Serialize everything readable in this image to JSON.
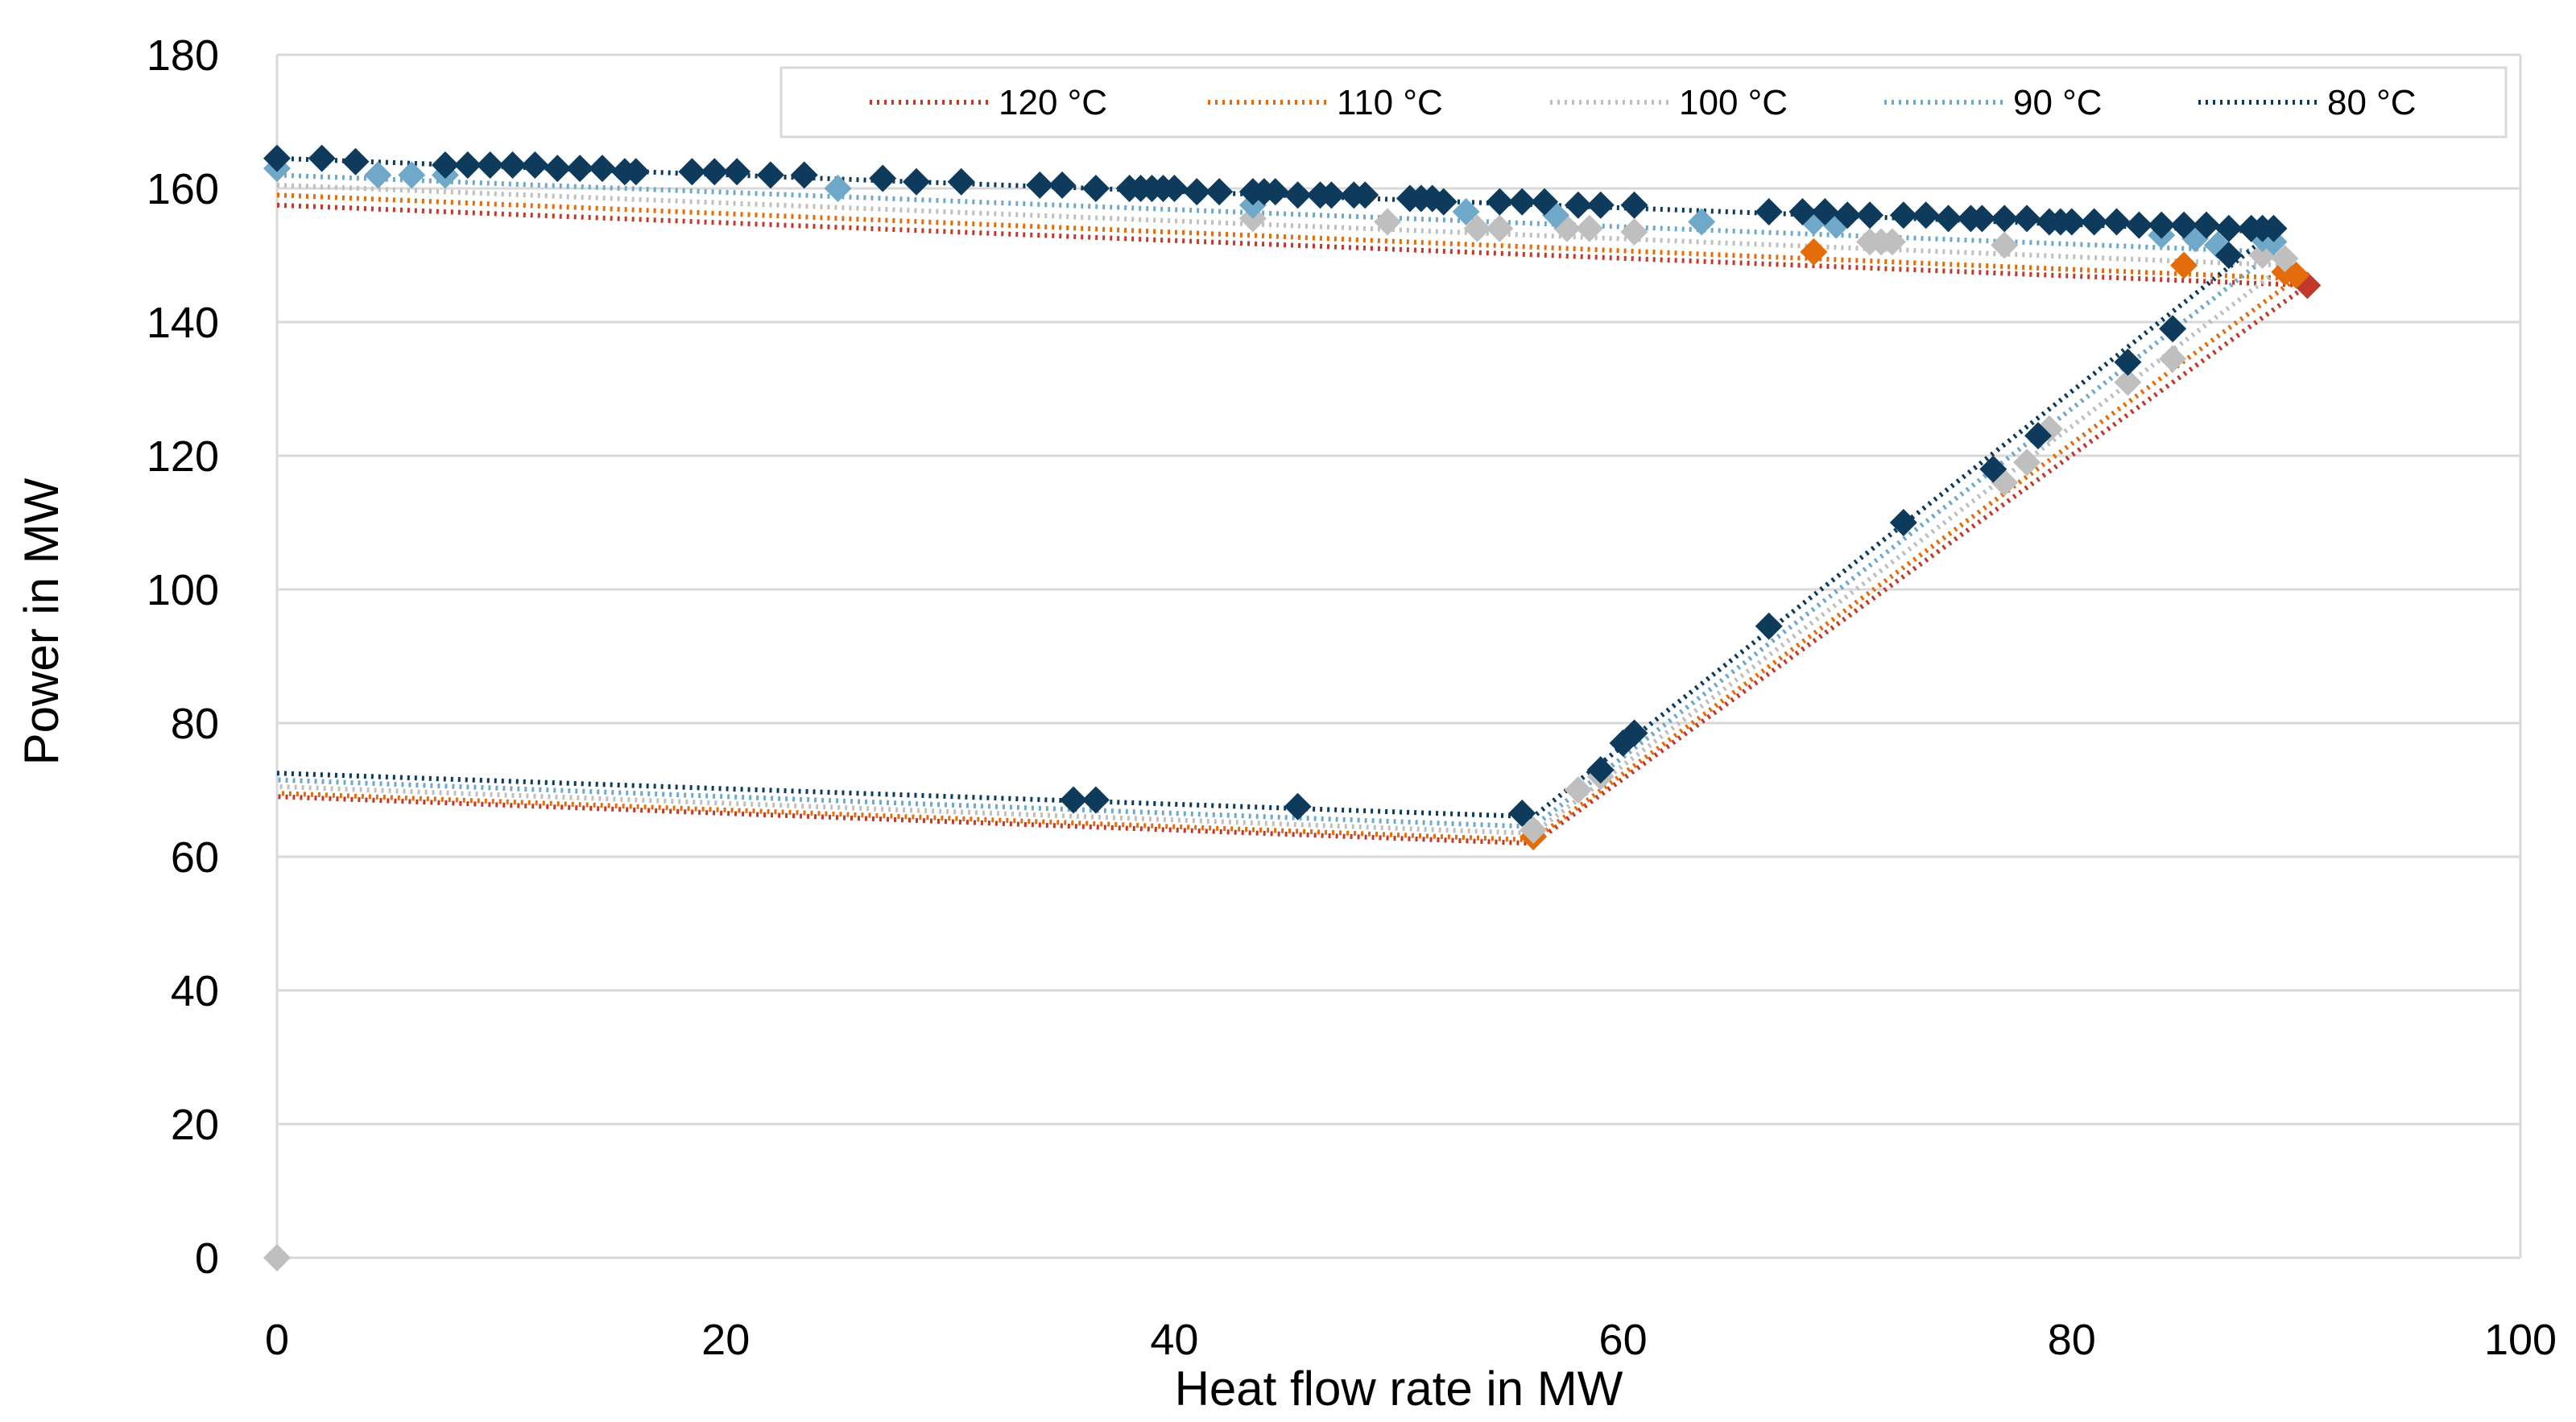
{
  "chart_data": {
    "type": "scatter",
    "title": "",
    "xlabel": "Heat flow rate in MW",
    "ylabel": "Power in MW",
    "xlim": [
      0,
      100
    ],
    "ylim": [
      0,
      180
    ],
    "x_ticks": [
      0,
      20,
      40,
      60,
      80,
      100
    ],
    "y_ticks": [
      0,
      20,
      40,
      60,
      80,
      100,
      120,
      140,
      160,
      180
    ],
    "x_tick_labels": [
      "0",
      "20",
      "40",
      "60",
      "80",
      "100"
    ],
    "y_tick_labels": [
      "0",
      "20",
      "40",
      "60",
      "80",
      "100",
      "120",
      "140",
      "160",
      "180"
    ],
    "grid": true,
    "legend_position": "top-right",
    "legend": [
      "120 °C",
      "110 °C",
      "100 °C",
      "90 °C",
      "80 °C"
    ],
    "series": [
      {
        "name": "120 °C",
        "color": "#c0392b",
        "trend": [
          [
            0,
            157.5
          ],
          [
            90.5,
            145.5
          ],
          [
            56,
            62
          ],
          [
            0,
            69
          ]
        ],
        "points": [
          [
            90.5,
            145.5
          ]
        ]
      },
      {
        "name": "110 °C",
        "color": "#e46c0a",
        "trend": [
          [
            0,
            159
          ],
          [
            90,
            146.5
          ],
          [
            56,
            62.5
          ],
          [
            0,
            69.5
          ]
        ],
        "points": [
          [
            68.5,
            150.5
          ],
          [
            85,
            148.5
          ],
          [
            89.5,
            147.5
          ],
          [
            90,
            147
          ],
          [
            56,
            63
          ]
        ]
      },
      {
        "name": "100 °C",
        "color": "#bfbfbf",
        "trend": [
          [
            0,
            160.5
          ],
          [
            89.5,
            148.5
          ],
          [
            56,
            63.5
          ],
          [
            0,
            70.5
          ]
        ],
        "points": [
          [
            0,
            0
          ],
          [
            43.5,
            155.5
          ],
          [
            49.5,
            155
          ],
          [
            53.5,
            154
          ],
          [
            54.5,
            154
          ],
          [
            57.5,
            154
          ],
          [
            58.5,
            154
          ],
          [
            60.5,
            153.5
          ],
          [
            71,
            152
          ],
          [
            71.5,
            152
          ],
          [
            72,
            152
          ],
          [
            77,
            151.5
          ],
          [
            88.5,
            150
          ],
          [
            89.5,
            149.5
          ],
          [
            84.5,
            134.5
          ],
          [
            82.5,
            131
          ],
          [
            79,
            124
          ],
          [
            78,
            119
          ],
          [
            77,
            116
          ],
          [
            58,
            70
          ],
          [
            59,
            72
          ],
          [
            56,
            64
          ]
        ]
      },
      {
        "name": "90 °C",
        "color": "#6fa8c8",
        "trend": [
          [
            0,
            162
          ],
          [
            89,
            150.5
          ],
          [
            56,
            64.5
          ],
          [
            0,
            71.5
          ]
        ],
        "points": [
          [
            0,
            163
          ],
          [
            4.5,
            162
          ],
          [
            6,
            162
          ],
          [
            7.5,
            162
          ],
          [
            25,
            160
          ],
          [
            43.5,
            157.5
          ],
          [
            53,
            156.5
          ],
          [
            57,
            156
          ],
          [
            63.5,
            155
          ],
          [
            68.5,
            155
          ],
          [
            69.5,
            154.5
          ],
          [
            84,
            153
          ],
          [
            85.5,
            152.5
          ],
          [
            86.5,
            151.5
          ],
          [
            88.5,
            152.5
          ],
          [
            89,
            152
          ]
        ]
      },
      {
        "name": "80 °C",
        "color": "#0e3b5c",
        "trend": [
          [
            0,
            164.5
          ],
          [
            89,
            153.5
          ],
          [
            56,
            66
          ],
          [
            0,
            72.5
          ]
        ],
        "points": [
          [
            0,
            164.5
          ],
          [
            2,
            164.5
          ],
          [
            3.5,
            164
          ],
          [
            7.5,
            163.5
          ],
          [
            8.5,
            163.5
          ],
          [
            9.5,
            163.5
          ],
          [
            10.5,
            163.5
          ],
          [
            11.5,
            163.5
          ],
          [
            12.5,
            163
          ],
          [
            13.5,
            163
          ],
          [
            14.5,
            163
          ],
          [
            15.5,
            162.5
          ],
          [
            16,
            162.5
          ],
          [
            18.5,
            162.5
          ],
          [
            19.5,
            162.5
          ],
          [
            20.5,
            162.5
          ],
          [
            22,
            162
          ],
          [
            23.5,
            162
          ],
          [
            27,
            161.5
          ],
          [
            28.5,
            161
          ],
          [
            30.5,
            161
          ],
          [
            34,
            160.5
          ],
          [
            35,
            160.5
          ],
          [
            36.5,
            160
          ],
          [
            38,
            160
          ],
          [
            38.5,
            160
          ],
          [
            39,
            160
          ],
          [
            39.5,
            160
          ],
          [
            40,
            160
          ],
          [
            41,
            159.5
          ],
          [
            42,
            159.5
          ],
          [
            43.5,
            159.5
          ],
          [
            44,
            159.5
          ],
          [
            44.5,
            159.5
          ],
          [
            45.5,
            159
          ],
          [
            46.5,
            159
          ],
          [
            47,
            159
          ],
          [
            48,
            159
          ],
          [
            48.5,
            159
          ],
          [
            50.5,
            158.5
          ],
          [
            51,
            158.5
          ],
          [
            51.5,
            158.5
          ],
          [
            52,
            158
          ],
          [
            54.5,
            158
          ],
          [
            55.5,
            158
          ],
          [
            56.5,
            158
          ],
          [
            58,
            157.5
          ],
          [
            59,
            157.5
          ],
          [
            60.5,
            157.5
          ],
          [
            66.5,
            156.5
          ],
          [
            68,
            156.5
          ],
          [
            69,
            156.5
          ],
          [
            70,
            156
          ],
          [
            71,
            156
          ],
          [
            72.5,
            156
          ],
          [
            73.5,
            156
          ],
          [
            74.5,
            155.5
          ],
          [
            75.5,
            155.5
          ],
          [
            76,
            155.5
          ],
          [
            77,
            155.5
          ],
          [
            78,
            155.5
          ],
          [
            79,
            155
          ],
          [
            79.5,
            155
          ],
          [
            80,
            155
          ],
          [
            81,
            155
          ],
          [
            82,
            155
          ],
          [
            83,
            154.5
          ],
          [
            84,
            154.5
          ],
          [
            85,
            154.5
          ],
          [
            86,
            154.5
          ],
          [
            87,
            154
          ],
          [
            88,
            154
          ],
          [
            88.5,
            154
          ],
          [
            89,
            154
          ],
          [
            87,
            150
          ],
          [
            84.5,
            139
          ],
          [
            82.5,
            134
          ],
          [
            78.5,
            123
          ],
          [
            76.5,
            118
          ],
          [
            72.5,
            110
          ],
          [
            66.5,
            94.5
          ],
          [
            60,
            77
          ],
          [
            60.5,
            78.5
          ],
          [
            59,
            73
          ],
          [
            55.5,
            66.5
          ],
          [
            45.5,
            67.5
          ],
          [
            36.5,
            68.5
          ],
          [
            35.5,
            68.5
          ]
        ]
      }
    ]
  }
}
